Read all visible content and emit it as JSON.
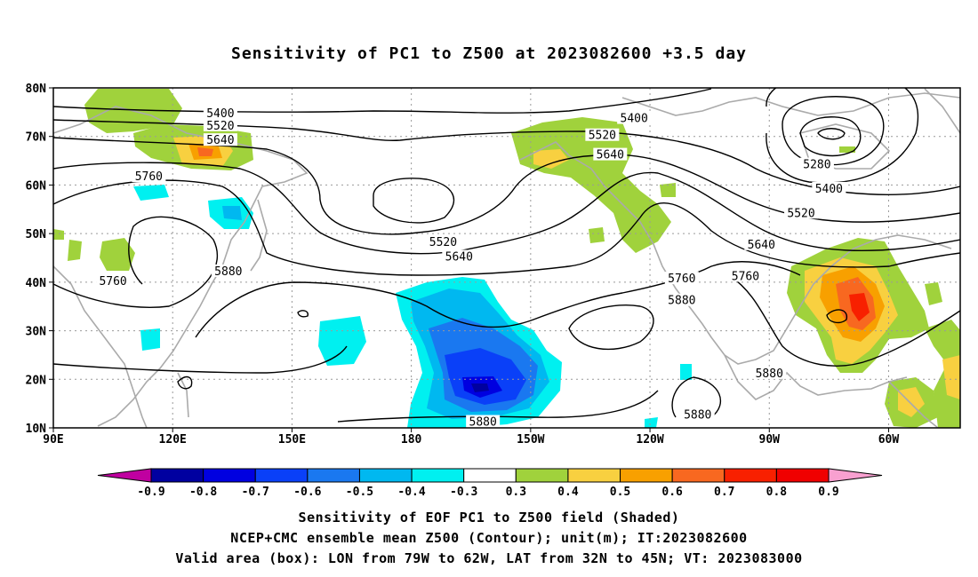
{
  "title": "Sensitivity of PC1 to Z500 at 2023082600 +3.5 day",
  "captions": {
    "line1": "Sensitivity of EOF PC1 to Z500 field (Shaded)",
    "line2": "NCEP+CMC ensemble mean Z500 (Contour); unit(m); IT:2023082600",
    "line3": "Valid area (box): LON from 79W to 62W, LAT from 32N to 45N; VT: 2023083000"
  },
  "map": {
    "lon_labels": [
      "90E",
      "120E",
      "150E",
      "180",
      "150W",
      "120W",
      "90W",
      "60W"
    ],
    "lat_labels": [
      "80N",
      "70N",
      "60N",
      "50N",
      "40N",
      "30N",
      "20N",
      "10N"
    ],
    "lon_range": [
      90,
      318
    ],
    "lat_range": [
      10,
      80
    ],
    "contour_labels": [
      {
        "text": "5400",
        "lon": 132,
        "lat": 74.5
      },
      {
        "text": "5400",
        "lon": 236,
        "lat": 73.5
      },
      {
        "text": "5400",
        "lon": 285,
        "lat": 59
      },
      {
        "text": "5520",
        "lon": 132,
        "lat": 72
      },
      {
        "text": "5520",
        "lon": 228,
        "lat": 70
      },
      {
        "text": "5520",
        "lon": 278,
        "lat": 54
      },
      {
        "text": "5520",
        "lon": 188,
        "lat": 48
      },
      {
        "text": "5640",
        "lon": 132,
        "lat": 69
      },
      {
        "text": "5640",
        "lon": 230,
        "lat": 66
      },
      {
        "text": "5640",
        "lon": 268,
        "lat": 47.5
      },
      {
        "text": "5640",
        "lon": 192,
        "lat": 45
      },
      {
        "text": "5760",
        "lon": 114,
        "lat": 61.5
      },
      {
        "text": "5760",
        "lon": 248,
        "lat": 40.5
      },
      {
        "text": "5760",
        "lon": 264,
        "lat": 41
      },
      {
        "text": "5760",
        "lon": 105,
        "lat": 40
      },
      {
        "text": "5880",
        "lon": 134,
        "lat": 42
      },
      {
        "text": "5880",
        "lon": 248,
        "lat": 36
      },
      {
        "text": "5880",
        "lon": 270,
        "lat": 21
      },
      {
        "text": "5880",
        "lon": 252,
        "lat": 12.5
      },
      {
        "text": "5880",
        "lon": 198,
        "lat": 11
      },
      {
        "text": "5280",
        "lon": 282,
        "lat": 64
      }
    ],
    "valid_box": {
      "lon_from": 281,
      "lon_to": 298,
      "lat_from": 32,
      "lat_to": 45
    }
  },
  "colorbar": {
    "labels": [
      "-0.9",
      "-0.8",
      "-0.7",
      "-0.6",
      "-0.5",
      "-0.4",
      "-0.3",
      "0.3",
      "0.4",
      "0.5",
      "0.6",
      "0.7",
      "0.8",
      "0.9"
    ],
    "colors": [
      "#0000a0",
      "#0000e0",
      "#0a40f8",
      "#1a78f0",
      "#00b8f0",
      "#00f0f0",
      "#ffffff",
      "#a0d23c",
      "#f8d040",
      "#f8a000",
      "#f86820",
      "#f82000",
      "#f00000"
    ],
    "end_left": "#c000a0",
    "end_right": "#f8a0d0"
  }
}
